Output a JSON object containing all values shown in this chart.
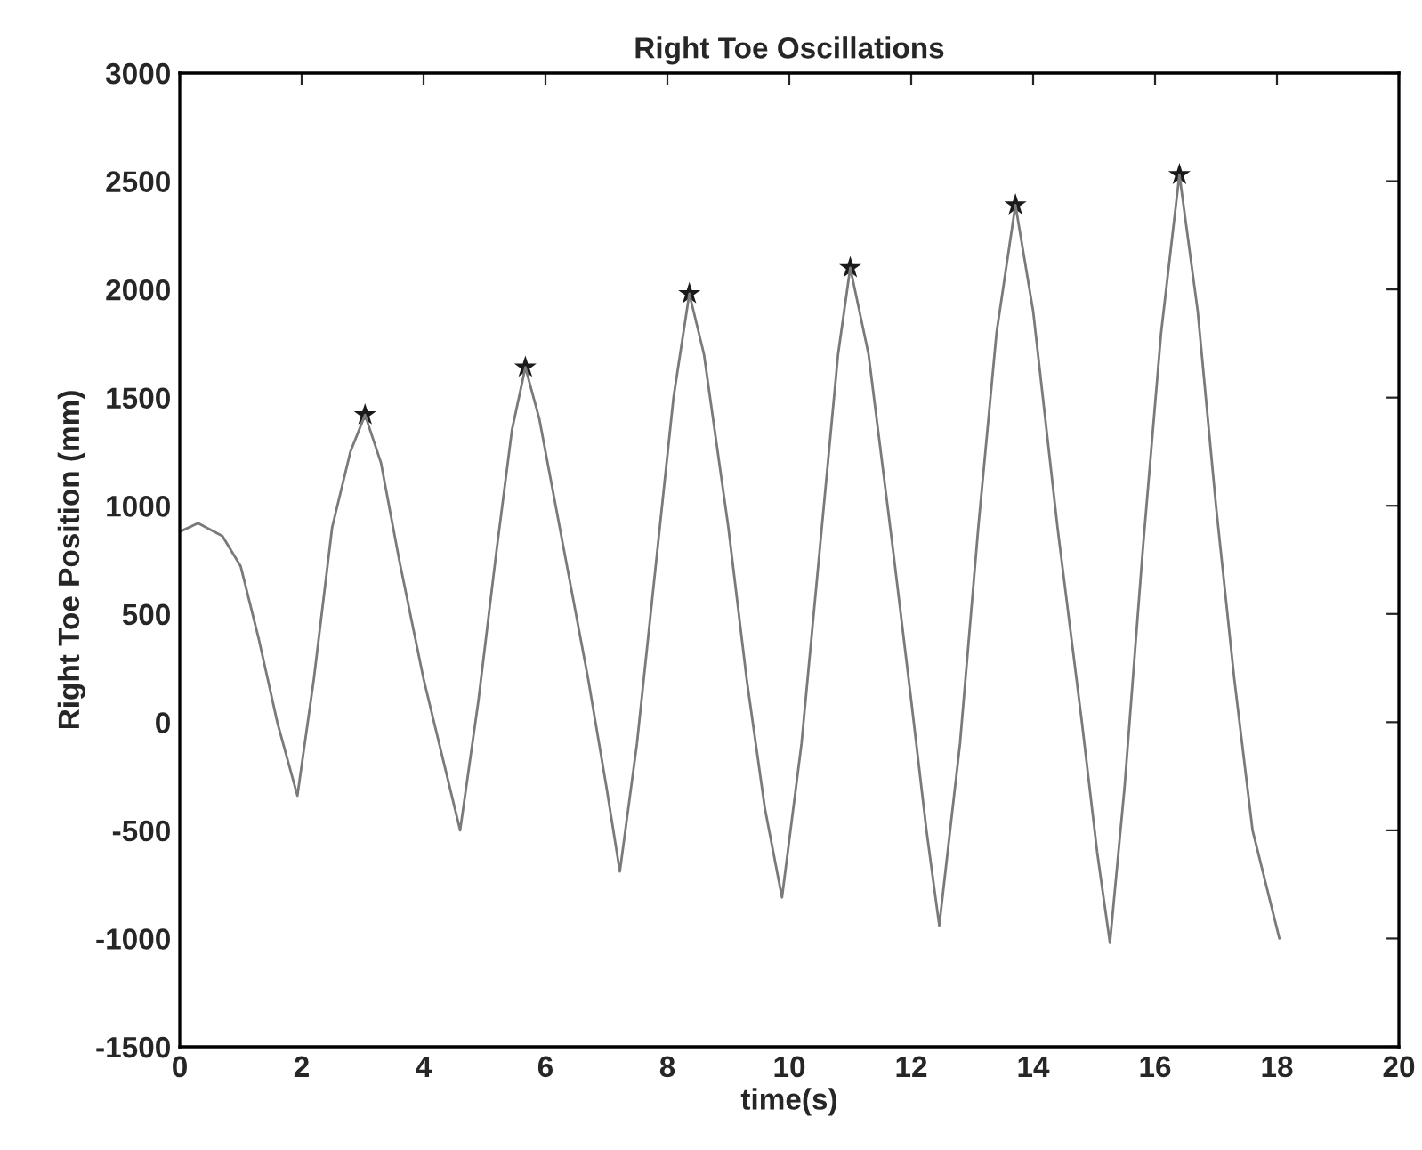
{
  "chart_data": {
    "type": "line",
    "title": "Right Toe Oscillations",
    "xlabel": "time(s)",
    "ylabel": "Right Toe Position (mm)",
    "xlim": [
      0,
      20
    ],
    "xticks": [
      0,
      2,
      4,
      6,
      8,
      10,
      12,
      14,
      16,
      18,
      20
    ],
    "ylim": [
      -1500,
      3000
    ],
    "yticks": [
      -1500,
      -1000,
      -500,
      0,
      500,
      1000,
      1500,
      2000,
      2500,
      3000
    ],
    "grid": false,
    "legend": false,
    "series": [
      {
        "color": "#7a7a7a",
        "line_style": "solid",
        "marker": "none",
        "x": [
          0,
          0.3,
          0.7,
          1.0,
          1.3,
          1.6,
          1.93,
          2.2,
          2.5,
          2.8,
          3.04,
          3.3,
          3.6,
          4.0,
          4.3,
          4.6,
          4.9,
          5.2,
          5.45,
          5.67,
          5.9,
          6.3,
          6.7,
          7.0,
          7.22,
          7.5,
          7.8,
          8.1,
          8.36,
          8.6,
          9.0,
          9.3,
          9.6,
          9.88,
          10.2,
          10.5,
          10.8,
          11.0,
          11.3,
          11.7,
          12.0,
          12.25,
          12.46,
          12.8,
          13.1,
          13.4,
          13.71,
          14.0,
          14.4,
          14.8,
          15.05,
          15.26,
          15.5,
          15.8,
          16.1,
          16.4,
          16.7,
          17.0,
          17.3,
          17.6,
          18.04
        ],
        "values": [
          880,
          920,
          860,
          720,
          380,
          0,
          -340,
          200,
          900,
          1250,
          1420,
          1200,
          750,
          200,
          -150,
          -500,
          100,
          800,
          1350,
          1640,
          1400,
          800,
          200,
          -300,
          -690,
          -100,
          700,
          1500,
          1980,
          1700,
          900,
          200,
          -400,
          -810,
          -100,
          800,
          1700,
          2100,
          1700,
          800,
          100,
          -500,
          -940,
          -100,
          900,
          1800,
          2390,
          1900,
          900,
          0,
          -600,
          -1020,
          -300,
          800,
          1800,
          2530,
          1900,
          1000,
          200,
          -500,
          -1000
        ]
      },
      {
        "type": "scatter",
        "color": "#1a1a1a",
        "marker": "star",
        "x": [
          3.04,
          5.67,
          8.36,
          11.0,
          13.71,
          16.4
        ],
        "values": [
          1420,
          1640,
          1980,
          2100,
          2390,
          2530
        ]
      }
    ]
  }
}
